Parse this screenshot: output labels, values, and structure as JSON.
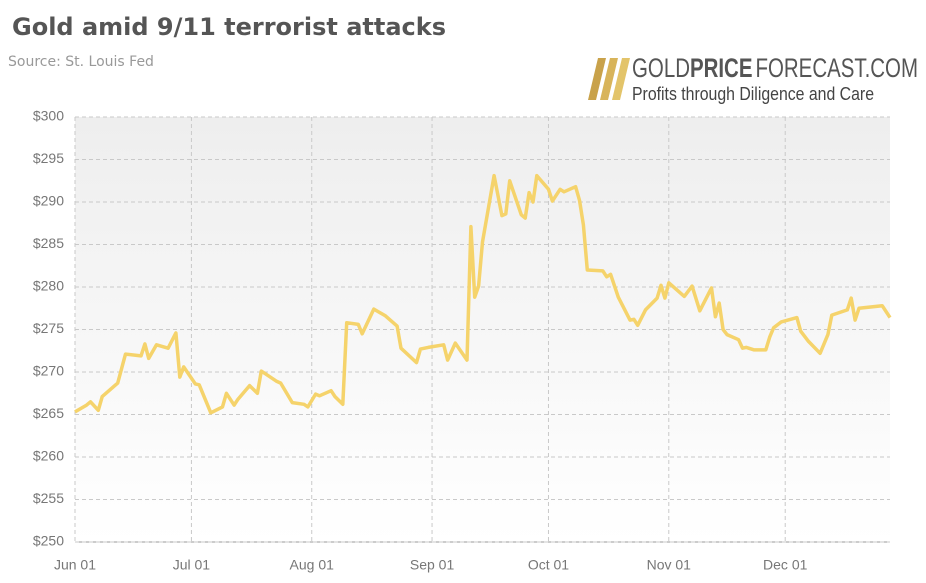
{
  "chart_data": {
    "type": "line",
    "title": "Gold amid 9/11 terrorist attacks",
    "subtitle": "Source: St. Louis Fed",
    "brand": {
      "name_parts": [
        "GOLD",
        "PRICE",
        "FORECAST.COM"
      ],
      "tagline": "Profits through Diligence and Care"
    },
    "color": "#f5d36b",
    "grid": true,
    "x": [
      "Jun 01",
      "Jun 04",
      "Jun 05",
      "Jun 07",
      "Jun 08",
      "Jun 12",
      "Jun 14",
      "Jun 18",
      "Jun 19",
      "Jun 20",
      "Jun 22",
      "Jun 25",
      "Jun 27",
      "Jun 28",
      "Jun 29",
      "Jul 02",
      "Jul 03",
      "Jul 06",
      "Jul 09",
      "Jul 10",
      "Jul 12",
      "Jul 13",
      "Jul 16",
      "Jul 18",
      "Jul 19",
      "Jul 23",
      "Jul 24",
      "Jul 27",
      "Jul 30",
      "Jul 31",
      "Aug 02",
      "Aug 03",
      "Aug 06",
      "Aug 07",
      "Aug 09",
      "Aug 10",
      "Aug 13",
      "Aug 14",
      "Aug 17",
      "Aug 20",
      "Aug 23",
      "Aug 24",
      "Aug 28",
      "Aug 29",
      "Aug 31",
      "Sep 04",
      "Sep 05",
      "Sep 07",
      "Sep 10",
      "Sep 11",
      "Sep 12",
      "Sep 13",
      "Sep 14",
      "Sep 17",
      "Sep 19",
      "Sep 20",
      "Sep 21",
      "Sep 24",
      "Sep 25",
      "Sep 26",
      "Sep 27",
      "Sep 28",
      "Oct 01",
      "Oct 02",
      "Oct 04",
      "Oct 05",
      "Oct 08",
      "Oct 09",
      "Oct 10",
      "Oct 11",
      "Oct 15",
      "Oct 16",
      "Oct 17",
      "Oct 19",
      "Oct 22",
      "Oct 23",
      "Oct 24",
      "Oct 26",
      "Oct 29",
      "Oct 30",
      "Oct 31",
      "Nov 01",
      "Nov 05",
      "Nov 07",
      "Nov 09",
      "Nov 12",
      "Nov 13",
      "Nov 14",
      "Nov 15",
      "Nov 16",
      "Nov 19",
      "Nov 20",
      "Nov 21",
      "Nov 23",
      "Nov 26",
      "Nov 27",
      "Nov 28",
      "Nov 30",
      "Dec 04",
      "Dec 05",
      "Dec 07",
      "Dec 10",
      "Dec 12",
      "Dec 13",
      "Dec 17",
      "Dec 18",
      "Dec 19",
      "Dec 20",
      "Dec 26",
      "Dec 28"
    ],
    "values": [
      265.3,
      266.1,
      266.5,
      265.5,
      267.1,
      268.7,
      272.1,
      271.9,
      273.3,
      271.6,
      273.2,
      272.8,
      274.6,
      269.4,
      270.6,
      268.6,
      268.5,
      265.2,
      265.9,
      267.5,
      266.1,
      266.8,
      268.4,
      267.5,
      270.1,
      268.9,
      268.7,
      266.4,
      266.2,
      265.9,
      267.4,
      267.2,
      267.8,
      267.1,
      266.2,
      275.8,
      275.6,
      274.5,
      277.4,
      276.6,
      275.4,
      272.8,
      271.1,
      272.7,
      272.9,
      273.2,
      271.4,
      273.4,
      271.4,
      287.1,
      278.8,
      280.1,
      285.3,
      293.1,
      288.4,
      288.6,
      292.5,
      288.5,
      288.1,
      291.1,
      290.0,
      293.1,
      291.5,
      290.1,
      291.5,
      291.2,
      291.8,
      290.2,
      287.3,
      282.0,
      281.9,
      281.2,
      281.5,
      278.8,
      276.1,
      276.2,
      275.5,
      277.3,
      278.7,
      280.2,
      278.7,
      280.5,
      278.9,
      280.1,
      277.2,
      279.9,
      276.5,
      278.1,
      275.0,
      274.4,
      273.8,
      272.8,
      272.9,
      272.6,
      272.6,
      274.1,
      275.2,
      275.9,
      276.4,
      274.8,
      273.6,
      272.2,
      274.4,
      276.7,
      277.3,
      278.7,
      276.1,
      277.5,
      277.8,
      276.4
    ],
    "xlim": [
      "Jun 01",
      "Dec 28"
    ],
    "xticks": [
      "Jun 01",
      "Jul 01",
      "Aug 01",
      "Sep 01",
      "Oct 01",
      "Nov 01",
      "Dec 01"
    ],
    "ylim": [
      250,
      300
    ],
    "yticks": [
      {
        "value": 250,
        "label": "$250"
      },
      {
        "value": 255,
        "label": "$255"
      },
      {
        "value": 260,
        "label": "$260"
      },
      {
        "value": 265,
        "label": "$265"
      },
      {
        "value": 270,
        "label": "$270"
      },
      {
        "value": 275,
        "label": "$275"
      },
      {
        "value": 280,
        "label": "$280"
      },
      {
        "value": 285,
        "label": "$285"
      },
      {
        "value": 290,
        "label": "$290"
      },
      {
        "value": 295,
        "label": "$295"
      },
      {
        "value": 300,
        "label": "$300"
      }
    ]
  }
}
